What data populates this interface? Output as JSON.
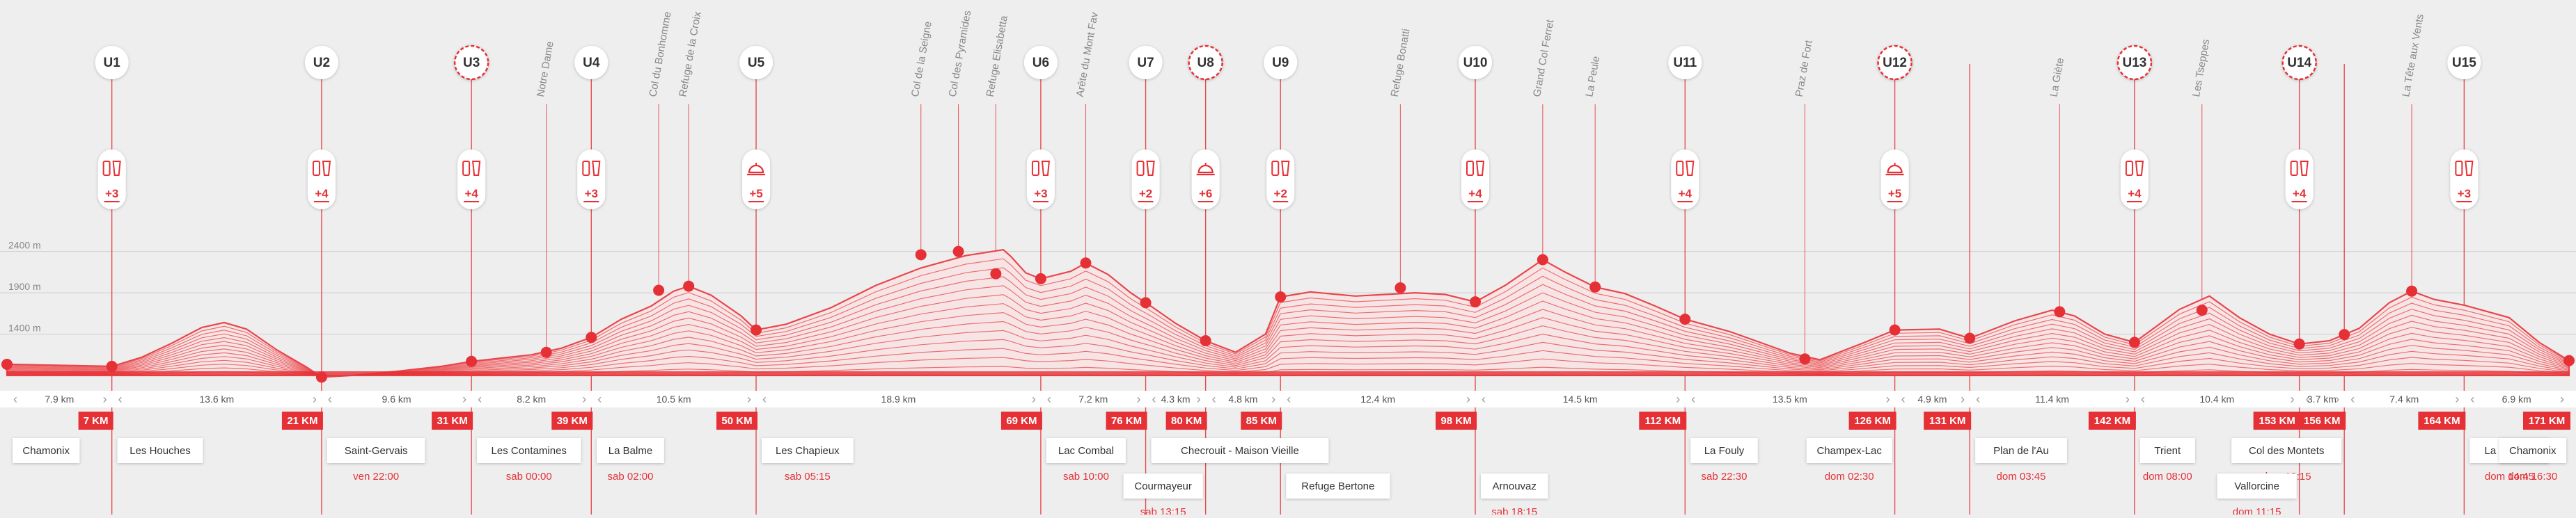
{
  "colors": {
    "accent": "#e53035",
    "line": "#e8474b",
    "guide": "#eaa9ab",
    "text_dark": "#333333",
    "text_muted": "#888888",
    "background": "#eeeeef",
    "white": "#ffffff"
  },
  "chart_data": {
    "type": "line",
    "ylabels": [
      "2400 m",
      "1900 m",
      "1400 m"
    ],
    "yticks": [
      2400,
      1900,
      1400
    ],
    "ylim": [
      900,
      2750
    ],
    "xlim": [
      0,
      171
    ],
    "elevation_profile": [
      [
        0,
        1035
      ],
      [
        7,
        1010
      ],
      [
        9,
        1120
      ],
      [
        11,
        1290
      ],
      [
        13,
        1480
      ],
      [
        14.5,
        1540
      ],
      [
        16,
        1460
      ],
      [
        18,
        1210
      ],
      [
        20,
        1000
      ],
      [
        21,
        880
      ],
      [
        23,
        900
      ],
      [
        26,
        950
      ],
      [
        29,
        1010
      ],
      [
        31,
        1070
      ],
      [
        33,
        1110
      ],
      [
        35,
        1150
      ],
      [
        37,
        1230
      ],
      [
        39,
        1360
      ],
      [
        41,
        1580
      ],
      [
        43,
        1740
      ],
      [
        44.5,
        1920
      ],
      [
        45.5,
        1980
      ],
      [
        47,
        1870
      ],
      [
        49,
        1620
      ],
      [
        50,
        1450
      ],
      [
        52,
        1520
      ],
      [
        55,
        1720
      ],
      [
        58,
        1990
      ],
      [
        61,
        2200
      ],
      [
        64,
        2350
      ],
      [
        66.5,
        2420
      ],
      [
        67,
        2340
      ],
      [
        68,
        2140
      ],
      [
        69,
        2070
      ],
      [
        71,
        2160
      ],
      [
        72,
        2260
      ],
      [
        73.5,
        2120
      ],
      [
        75,
        1900
      ],
      [
        76.5,
        1720
      ],
      [
        78,
        1530
      ],
      [
        80,
        1320
      ],
      [
        82,
        1180
      ],
      [
        84,
        1400
      ],
      [
        85,
        1850
      ],
      [
        87,
        1910
      ],
      [
        90,
        1860
      ],
      [
        92,
        1880
      ],
      [
        94,
        1900
      ],
      [
        96,
        1880
      ],
      [
        98,
        1790
      ],
      [
        100,
        1990
      ],
      [
        102.5,
        2300
      ],
      [
        104,
        2150
      ],
      [
        106,
        1970
      ],
      [
        108,
        1890
      ],
      [
        110,
        1740
      ],
      [
        112,
        1580
      ],
      [
        115,
        1430
      ],
      [
        117,
        1300
      ],
      [
        119,
        1170
      ],
      [
        121,
        1090
      ],
      [
        124,
        1300
      ],
      [
        126,
        1450
      ],
      [
        129,
        1460
      ],
      [
        131,
        1350
      ],
      [
        134,
        1560
      ],
      [
        136.5,
        1690
      ],
      [
        138,
        1620
      ],
      [
        140,
        1400
      ],
      [
        142,
        1300
      ],
      [
        145,
        1700
      ],
      [
        147,
        1860
      ],
      [
        149,
        1600
      ],
      [
        151,
        1400
      ],
      [
        153,
        1280
      ],
      [
        155,
        1320
      ],
      [
        157,
        1470
      ],
      [
        159,
        1780
      ],
      [
        160.5,
        1920
      ],
      [
        162,
        1820
      ],
      [
        164,
        1750
      ],
      [
        167,
        1600
      ],
      [
        169,
        1300
      ],
      [
        171,
        1080
      ]
    ],
    "aid_stations": [
      {
        "label": "U1",
        "km": 7,
        "dashed": false,
        "icons": "drink+food",
        "count": "+3"
      },
      {
        "label": "U2",
        "km": 21,
        "dashed": false,
        "icons": "phone+drink",
        "count": "+4"
      },
      {
        "label": "U3",
        "km": 31,
        "dashed": true,
        "icons": "phone+drink",
        "count": "+4"
      },
      {
        "label": "U4",
        "km": 39,
        "dashed": false,
        "icons": "drink+phone",
        "count": "+3"
      },
      {
        "label": "U5",
        "km": 50,
        "dashed": false,
        "icons": "hot-meal",
        "count": "+5"
      },
      {
        "label": "U6",
        "km": 69,
        "dashed": false,
        "icons": "phone+drink",
        "count": "+3"
      },
      {
        "label": "U7",
        "km": 76,
        "dashed": false,
        "icons": "drink+food",
        "count": "+2"
      },
      {
        "label": "U8",
        "km": 80,
        "dashed": true,
        "icons": "hot-meal",
        "count": "+6"
      },
      {
        "label": "U9",
        "km": 85,
        "dashed": false,
        "icons": "drink+food",
        "count": "+2"
      },
      {
        "label": "U10",
        "km": 98,
        "dashed": false,
        "icons": "phone+drink",
        "count": "+4"
      },
      {
        "label": "U11",
        "km": 112,
        "dashed": false,
        "icons": "phone+drink",
        "count": "+4"
      },
      {
        "label": "U12",
        "km": 126,
        "dashed": true,
        "icons": "hot-meal",
        "count": "+5"
      },
      {
        "label": "U13",
        "km": 142,
        "dashed": true,
        "icons": "phone+drink",
        "count": "+4"
      },
      {
        "label": "U14",
        "km": 153,
        "dashed": true,
        "icons": "phone+drink",
        "count": "+4"
      },
      {
        "label": "U15",
        "km": 164,
        "dashed": false,
        "icons": "drink+food",
        "count": "+3"
      }
    ],
    "summits": [
      {
        "name": "Notre Dame",
        "km": 36,
        "elev": 1180,
        "tilt": true
      },
      {
        "name": "Col du Bonhomme",
        "km": 43.5,
        "elev": 1930,
        "tilt": true
      },
      {
        "name": "Refuge de la Croix",
        "km": 45.5,
        "elev": 1980,
        "tilt": true
      },
      {
        "name": "Col de la Seigne",
        "km": 61,
        "elev": 2360,
        "tilt": true
      },
      {
        "name": "Col des Pyramides",
        "km": 63.5,
        "elev": 2400,
        "tilt": true
      },
      {
        "name": "Refuge Elisabetta",
        "km": 66,
        "elev": 2130,
        "tilt": true
      },
      {
        "name": "Arête du Mont Fav",
        "km": 72,
        "elev": 2260,
        "tilt": true
      },
      {
        "name": "Refuge Bonatti",
        "km": 93,
        "elev": 1960,
        "tilt": true
      },
      {
        "name": "Grand Col Ferret",
        "km": 102.5,
        "elev": 2300,
        "tilt": true
      },
      {
        "name": "La Peule",
        "km": 106,
        "elev": 1970,
        "tilt": true
      },
      {
        "name": "Praz de Fort",
        "km": 120,
        "elev": 1100,
        "tilt": true
      },
      {
        "name": "La Giète",
        "km": 137,
        "elev": 1670,
        "tilt": true
      },
      {
        "name": "Les Tseppes",
        "km": 146.5,
        "elev": 1690,
        "tilt": true
      },
      {
        "name": "La Tête aux Vents",
        "km": 160.5,
        "elev": 1920,
        "tilt": true
      }
    ],
    "extra_dots_km": [
      0,
      7,
      21,
      31,
      39,
      50,
      69,
      76,
      80,
      85,
      98,
      112,
      126,
      131,
      142,
      153,
      156,
      171
    ],
    "segment_boundaries_km": [
      0,
      7,
      21,
      31,
      39,
      50,
      69,
      76,
      80,
      85,
      98,
      112,
      126,
      131,
      142,
      153,
      156,
      164,
      171
    ],
    "segment_distances": [
      "7.9 km",
      "13.6 km",
      "9.6 km",
      "8.2 km",
      "10.5 km",
      "18.9 km",
      "7.2 km",
      "4.3 km",
      "4.8 km",
      "12.4 km",
      "14.5 km",
      "13.5 km",
      "4.9 km",
      "11.4 km",
      "10.4 km",
      "3.7 km",
      "7.4 km",
      "6.9 km"
    ],
    "km_markers": [
      {
        "km": 7,
        "label": "7 KM"
      },
      {
        "km": 21,
        "label": "21 KM"
      },
      {
        "km": 31,
        "label": "31 KM"
      },
      {
        "km": 39,
        "label": "39 KM"
      },
      {
        "km": 50,
        "label": "50 KM"
      },
      {
        "km": 69,
        "label": "69 KM"
      },
      {
        "km": 76,
        "label": "76 KM"
      },
      {
        "km": 80,
        "label": "80 KM"
      },
      {
        "km": 85,
        "label": "85 KM"
      },
      {
        "km": 98,
        "label": "98 KM"
      },
      {
        "km": 112,
        "label": "112 KM"
      },
      {
        "km": 126,
        "label": "126 KM"
      },
      {
        "km": 131,
        "label": "131 KM"
      },
      {
        "km": 142,
        "label": "142 KM"
      },
      {
        "km": 153,
        "label": "153 KM"
      },
      {
        "km": 156,
        "label": "156 KM"
      },
      {
        "km": 164,
        "label": "164 KM"
      },
      {
        "km": 171,
        "label": "171 KM"
      }
    ],
    "places": [
      {
        "name": "Chamonix",
        "km": 0,
        "time": "",
        "row": 1,
        "side": "right"
      },
      {
        "name": "Les Houches",
        "km": 7,
        "time": "",
        "row": 1,
        "side": "right"
      },
      {
        "name": "Saint-Gervais",
        "km": 21,
        "time": "ven 22:00",
        "row": 1,
        "side": "right"
      },
      {
        "name": "Les Contamines",
        "km": 31,
        "time": "sab 00:00",
        "row": 1,
        "side": "right"
      },
      {
        "name": "La Balme",
        "km": 39,
        "time": "sab 02:00",
        "row": 1,
        "side": "right"
      },
      {
        "name": "Les Chapieux",
        "km": 50,
        "time": "sab 05:15",
        "row": 1,
        "side": "right"
      },
      {
        "name": "Lac Combal",
        "km": 69,
        "time": "sab 10:00",
        "row": 1,
        "side": "right"
      },
      {
        "name": "Checrouit - Maison Vieille",
        "km": 76,
        "time": "",
        "row": 1,
        "side": "right"
      },
      {
        "name": "Courmayeur",
        "km": 80,
        "time": "sab 13:15",
        "row": 2,
        "side": "left"
      },
      {
        "name": "Refuge Bertone",
        "km": 85,
        "time": "",
        "row": 2,
        "side": "right"
      },
      {
        "name": "Arnouvaz",
        "km": 98,
        "time": "sab 18:15",
        "row": 2,
        "side": "right"
      },
      {
        "name": "La Fouly",
        "km": 112,
        "time": "sab 22:30",
        "row": 1,
        "side": "right"
      },
      {
        "name": "Champex-Lac",
        "km": 126,
        "time": "dom 02:30",
        "row": 1,
        "side": "left"
      },
      {
        "name": "Plan de l'Au",
        "km": 131,
        "time": "dom 03:45",
        "row": 1,
        "side": "right"
      },
      {
        "name": "Trient",
        "km": 142,
        "time": "dom 08:00",
        "row": 1,
        "side": "right"
      },
      {
        "name": "Col des Montets",
        "km": 156,
        "time": "dom 12:15",
        "row": 1,
        "side": "left"
      },
      {
        "name": "Vallorcine",
        "km": 153,
        "time": "dom 11:15",
        "row": 2,
        "side": "left"
      },
      {
        "name": "La Flégère",
        "km": 164,
        "time": "dom 14:45",
        "row": 1,
        "side": "right"
      },
      {
        "name": "Chamonix",
        "km": 171,
        "time": "dom 16:30",
        "row": 1,
        "side": "left"
      }
    ]
  }
}
